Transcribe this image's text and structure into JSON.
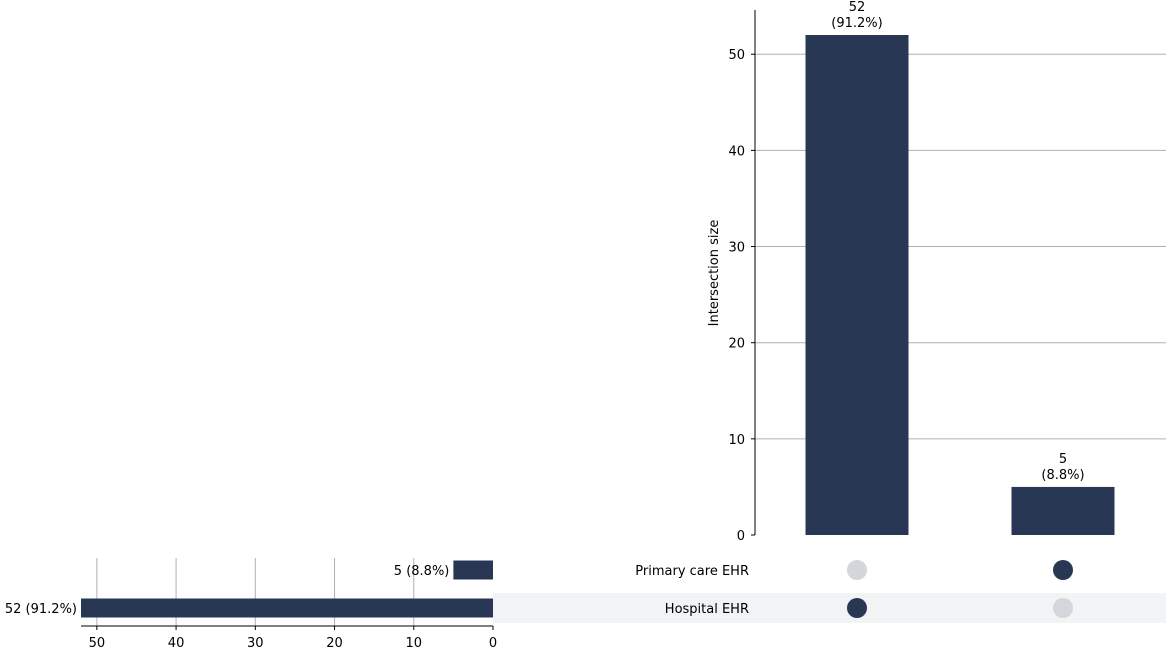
{
  "chart_data": {
    "type": "upset",
    "intersections": {
      "ylabel": "Intersection size",
      "ylim": [
        0,
        54.6
      ],
      "yticks": [
        0,
        10,
        20,
        30,
        40,
        50
      ],
      "grid": true,
      "bars": [
        {
          "members": [
            "Hospital EHR"
          ],
          "value": 52,
          "count_label": "52",
          "pct_label": "(91.2%)"
        },
        {
          "members": [
            "Primary care EHR"
          ],
          "value": 5,
          "count_label": "5",
          "pct_label": "(8.8%)"
        }
      ]
    },
    "sets": {
      "xlim": [
        52,
        0
      ],
      "xticks": [
        50,
        40,
        30,
        20,
        10,
        0
      ],
      "grid": true,
      "items": [
        {
          "name": "Primary care EHR",
          "value": 5,
          "label": "5 (8.8%)",
          "shaded": false
        },
        {
          "name": "Hospital EHR",
          "value": 52,
          "label": "52 (91.2%)",
          "shaded": true
        }
      ]
    },
    "colors": {
      "bar": "#283754",
      "dot_active": "#283754",
      "dot_inactive": "#d3d6da",
      "grid": "#b0b0b0",
      "row_shade": "#f2f3f5"
    }
  }
}
